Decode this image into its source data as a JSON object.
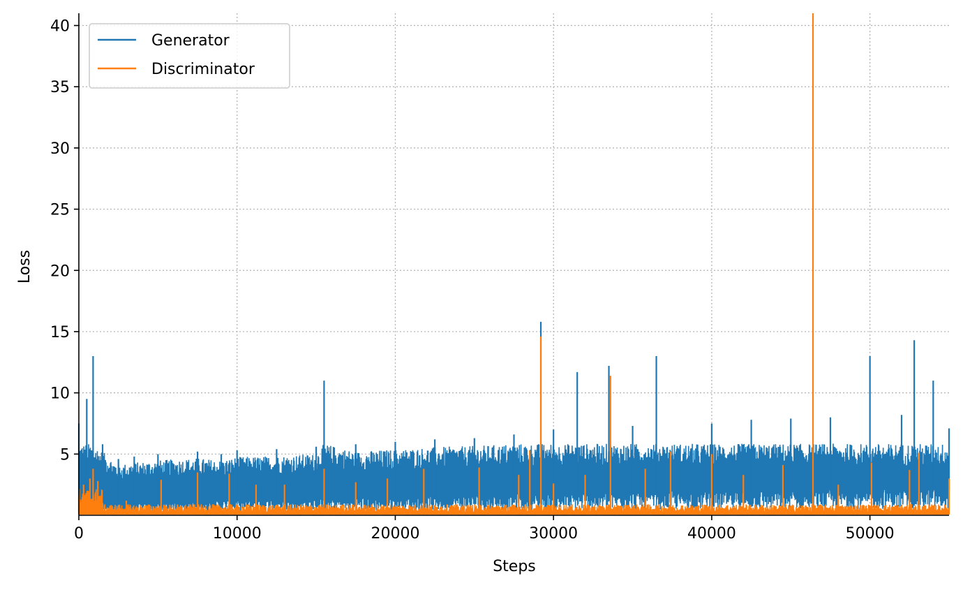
{
  "chart_data": {
    "type": "line",
    "xlabel": "Steps",
    "ylabel": "Loss",
    "xlim": [
      0,
      55000
    ],
    "ylim": [
      0,
      41
    ],
    "x_ticks": [
      0,
      10000,
      20000,
      30000,
      40000,
      50000
    ],
    "y_ticks": [
      5,
      10,
      15,
      20,
      25,
      30,
      35,
      40
    ],
    "grid": true,
    "legend_position": "top-left",
    "series": [
      {
        "name": "Generator",
        "color": "#1f77b4",
        "x": [
          0,
          500,
          900,
          1500,
          2500,
          3500,
          5000,
          7500,
          9000,
          10000,
          12500,
          15000,
          15500,
          17500,
          20000,
          22500,
          25000,
          27500,
          29200,
          30000,
          31500,
          33500,
          35000,
          36500,
          40000,
          42500,
          45000,
          47500,
          50000,
          52000,
          52800,
          54000,
          55000
        ],
        "y": [
          7.5,
          9.5,
          13.0,
          5.8,
          4.6,
          4.8,
          5.0,
          5.2,
          5.0,
          5.3,
          5.4,
          5.6,
          11.0,
          5.8,
          6.0,
          6.2,
          6.3,
          6.6,
          15.8,
          7.0,
          11.7,
          12.2,
          7.3,
          13.0,
          7.5,
          7.8,
          7.9,
          8.0,
          13.0,
          8.2,
          14.3,
          11.0,
          7.1
        ],
        "baseline": [
          0.4,
          0.5,
          0.8,
          1.0,
          1.2,
          1.4,
          1.6,
          1.7,
          1.9,
          2.0,
          2.1,
          2.2,
          2.2,
          2.3,
          2.4,
          2.5,
          2.6,
          2.7,
          2.8,
          2.8,
          2.9,
          3.0,
          3.0,
          3.1,
          3.2,
          3.2,
          3.3,
          3.3,
          3.4,
          3.4,
          3.4,
          3.4,
          3.4
        ]
      },
      {
        "name": "Discriminator",
        "color": "#ff7f0e",
        "x": [
          0,
          300,
          700,
          900,
          1200,
          1500,
          3000,
          5200,
          7500,
          9500,
          11200,
          13000,
          15500,
          17500,
          19500,
          21800,
          25300,
          27800,
          28500,
          29200,
          30000,
          32000,
          33600,
          35800,
          37400,
          40000,
          42000,
          44500,
          46400,
          48000,
          50100,
          52500,
          53100,
          55000
        ],
        "y": [
          1.5,
          2.5,
          3.0,
          3.8,
          2.8,
          1.0,
          1.2,
          2.9,
          3.5,
          3.4,
          2.5,
          2.5,
          3.8,
          2.7,
          3.0,
          3.8,
          3.9,
          3.3,
          5.3,
          14.6,
          2.6,
          3.3,
          11.4,
          3.8,
          5.2,
          5.0,
          3.3,
          4.1,
          41.0,
          2.5,
          4.3,
          3.7,
          5.1,
          3.0
        ]
      }
    ]
  }
}
